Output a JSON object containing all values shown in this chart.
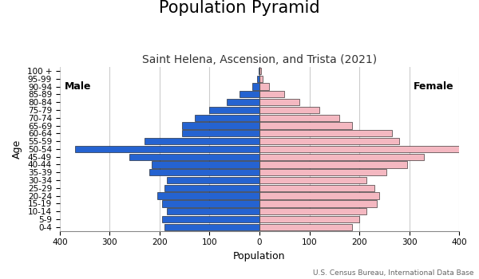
{
  "title": "Population Pyramid",
  "subtitle": "Saint Helena, Ascension, and Trista (2021)",
  "xlabel": "Population",
  "ylabel": "Age",
  "footnote": "U.S. Census Bureau, International Data Base",
  "age_groups": [
    "0-4",
    "5-9",
    "10-14",
    "15-19",
    "20-24",
    "25-29",
    "30-34",
    "35-39",
    "40-44",
    "45-49",
    "50-54",
    "55-59",
    "60-64",
    "65-69",
    "70-74",
    "75-79",
    "80-84",
    "85-89",
    "90-94",
    "95-99",
    "100 +"
  ],
  "male": [
    190,
    195,
    185,
    195,
    205,
    190,
    185,
    220,
    215,
    260,
    370,
    230,
    155,
    155,
    130,
    100,
    65,
    40,
    15,
    5,
    2
  ],
  "female": [
    185,
    200,
    215,
    235,
    240,
    230,
    215,
    255,
    295,
    330,
    400,
    280,
    265,
    185,
    160,
    120,
    80,
    50,
    20,
    7,
    3
  ],
  "male_color": "#2563d1",
  "female_color": "#f4b8c1",
  "bar_edge_color": "#111111",
  "background_color": "#ffffff",
  "xlim": 400,
  "grid_color": "#cccccc",
  "title_fontsize": 15,
  "subtitle_fontsize": 10,
  "label_fontsize": 9,
  "tick_fontsize": 7.5,
  "bar_height": 0.85
}
